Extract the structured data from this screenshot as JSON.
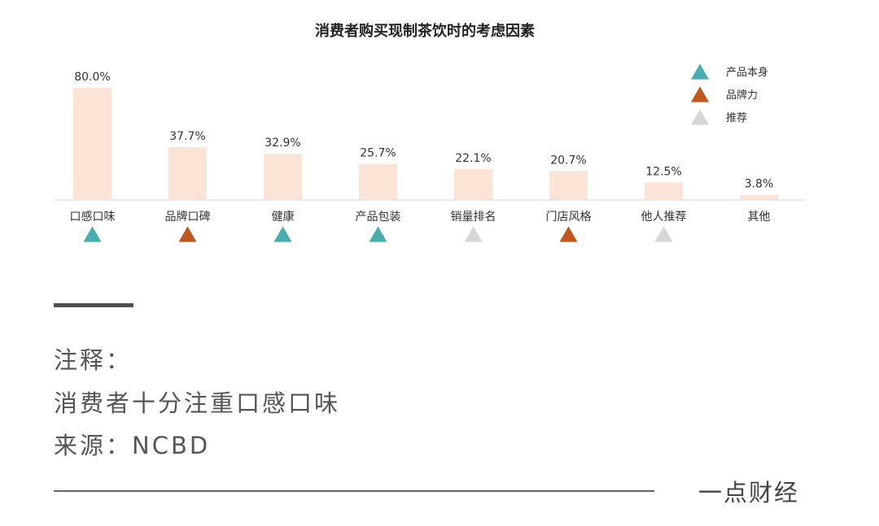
{
  "chart_data": {
    "type": "bar",
    "title": "消费者购买现制茶饮时的考虑因素",
    "categories": [
      "口感口味",
      "品牌口碑",
      "健康",
      "产品包装",
      "销量排名",
      "门店风格",
      "他人推荐",
      "其他"
    ],
    "values": [
      80.0,
      37.7,
      32.9,
      25.7,
      22.1,
      20.7,
      12.5,
      3.8
    ],
    "value_labels": [
      "80.0%",
      "37.7%",
      "32.9%",
      "25.7%",
      "22.1%",
      "20.7%",
      "12.5%",
      "3.8%"
    ],
    "markers": [
      "产品本身",
      "品牌力",
      "产品本身",
      "产品本身",
      "推荐",
      "品牌力",
      "推荐",
      null
    ],
    "ylim": [
      0,
      80
    ],
    "bar_color": "#fbe3d6",
    "legend": {
      "position": "top-right",
      "items": [
        {
          "label": "产品本身",
          "color": "#4aaeb0"
        },
        {
          "label": "品牌力",
          "color": "#c0571c"
        },
        {
          "label": "推荐",
          "color": "#d6d6d6"
        }
      ]
    },
    "grid": false
  },
  "notes": {
    "title": "注释：",
    "body": "消费者十分注重口感口味",
    "source": "来源：NCBD"
  },
  "footer": {
    "brand": "一点财经"
  }
}
